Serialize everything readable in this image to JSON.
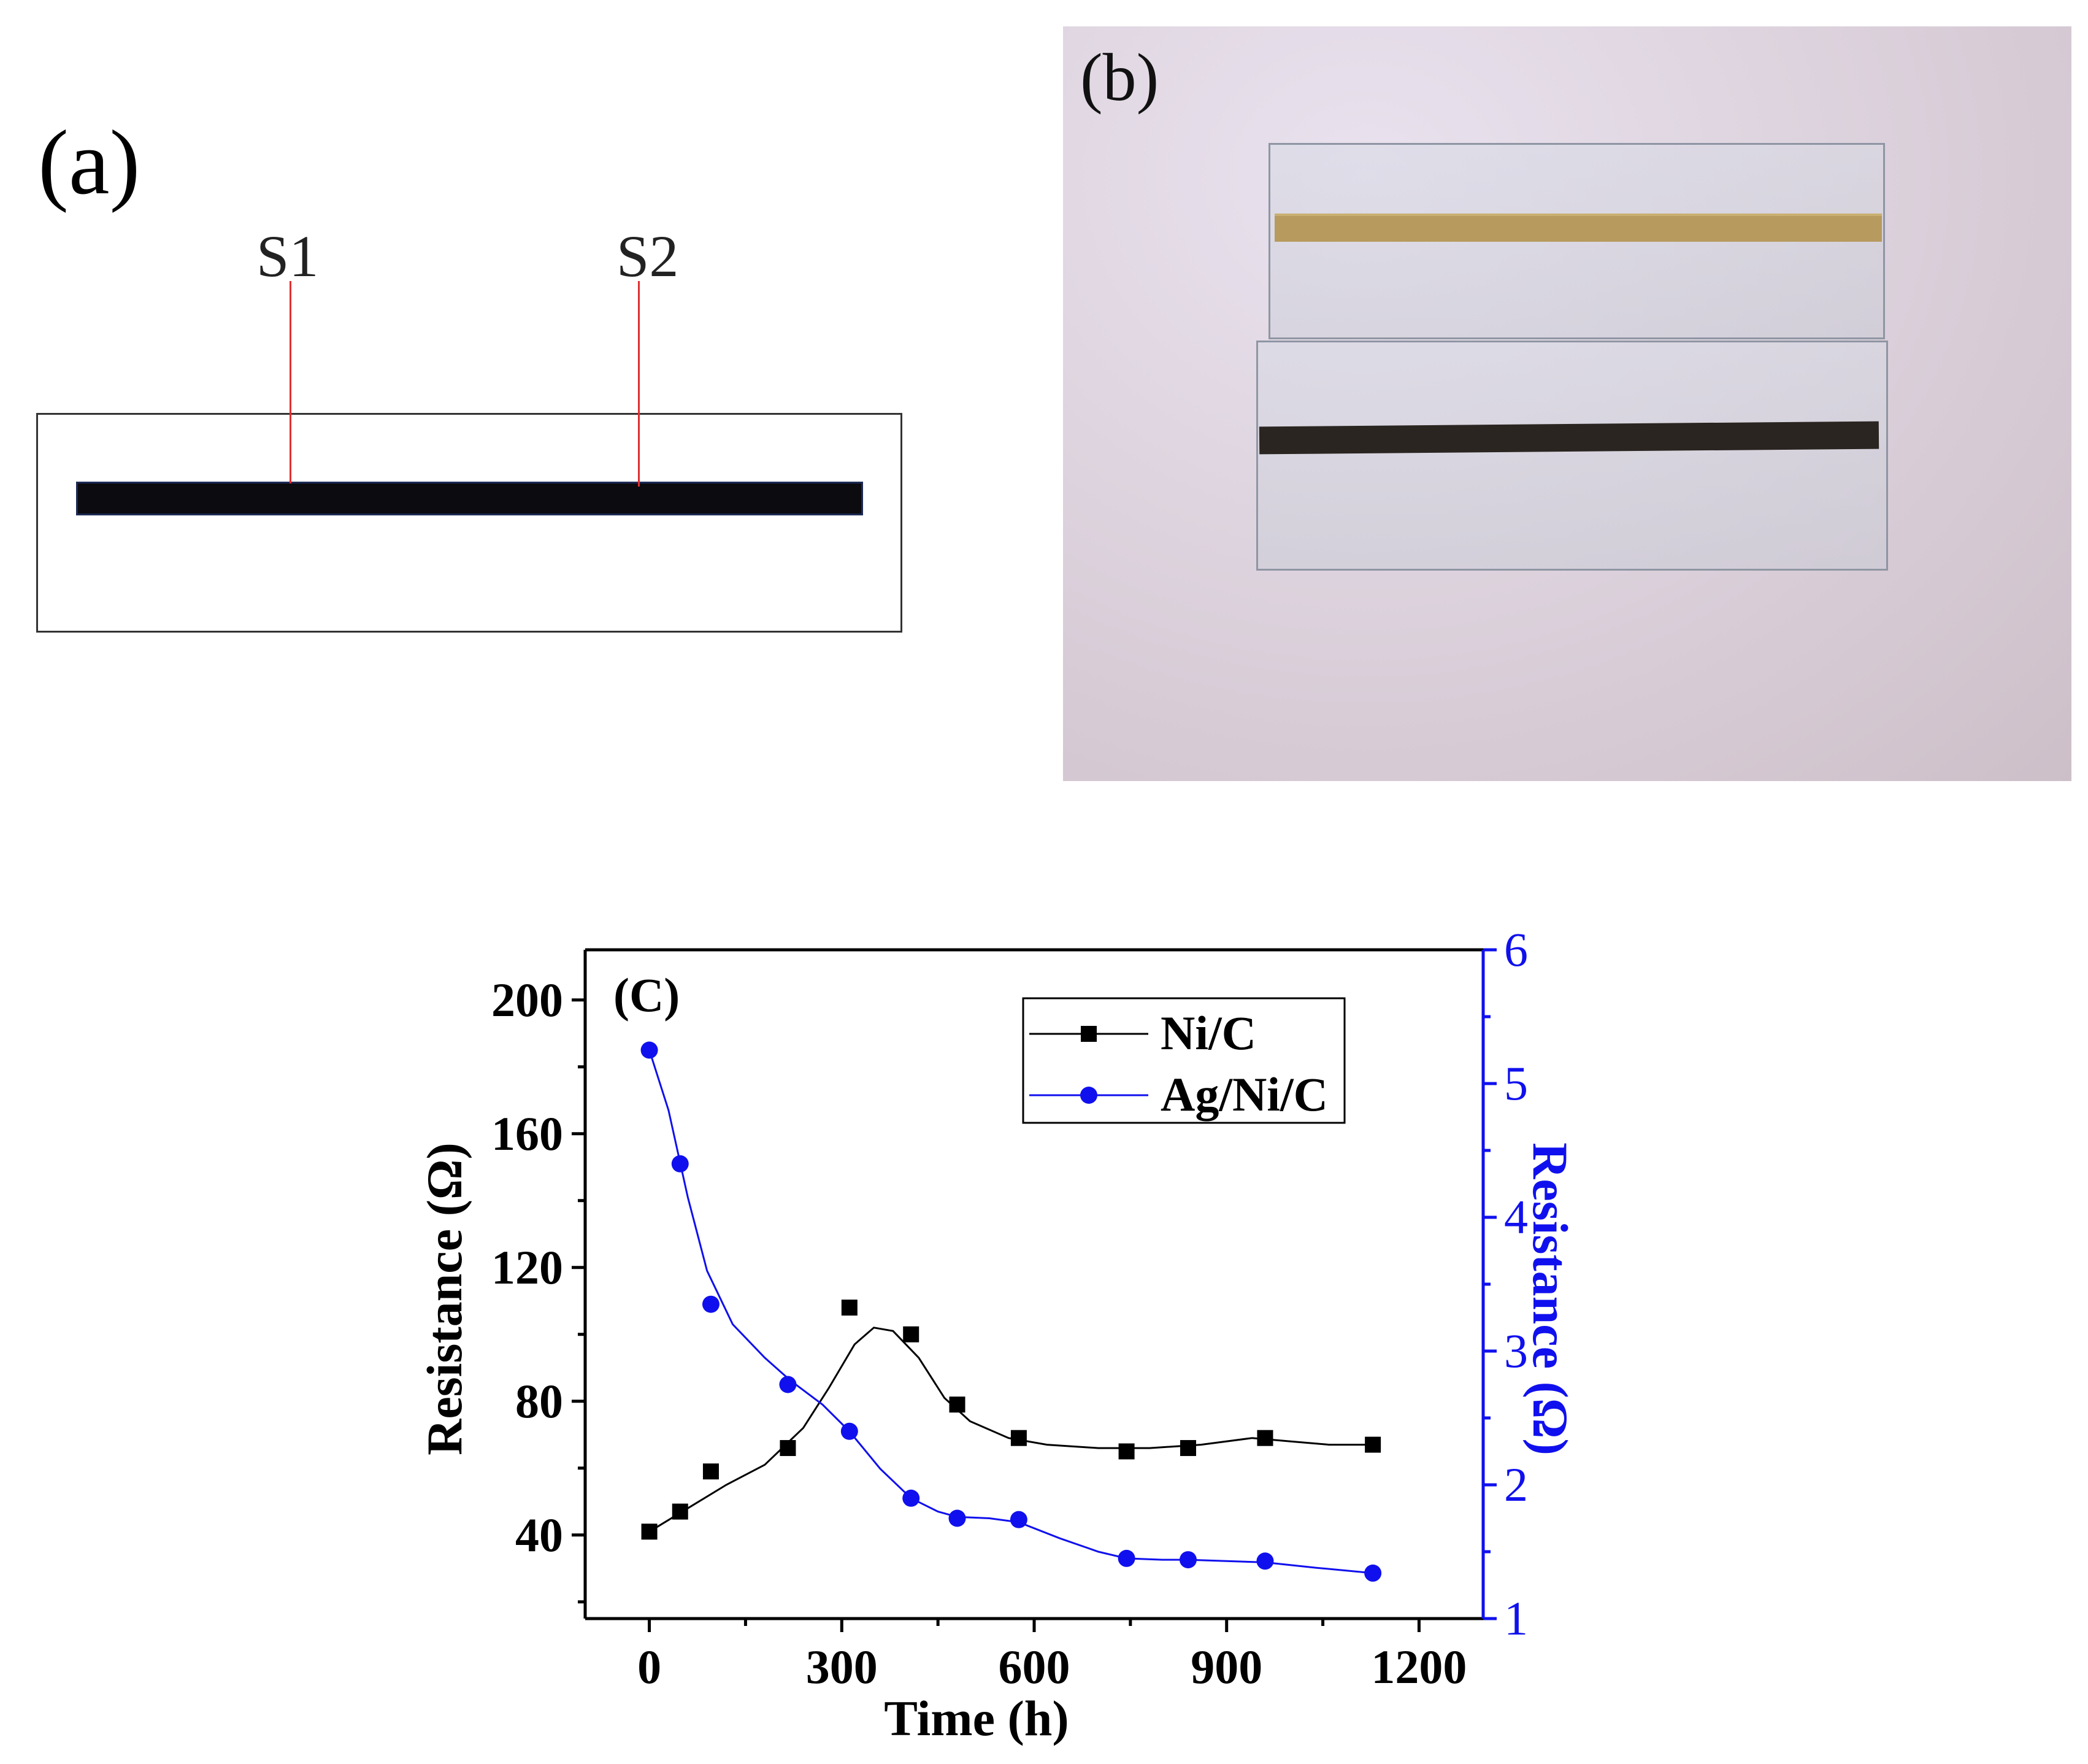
{
  "panel_a": {
    "label": "(a)",
    "probes": [
      "S1",
      "S2"
    ]
  },
  "panel_b": {
    "label": "(b)"
  },
  "chart_data": {
    "type": "scatter",
    "panel_label": "(C)",
    "xlabel": "Time (h)",
    "ylabel_left": "Resistance (Ω)",
    "ylabel_right": "Resistance (Ω)",
    "xlim": [
      -100,
      1300
    ],
    "ylim_left": [
      15,
      215
    ],
    "ylim_right": [
      1,
      6
    ],
    "x_ticks": [
      0,
      300,
      600,
      900,
      1200
    ],
    "y_ticks_left": [
      40,
      80,
      120,
      160,
      200
    ],
    "y_ticks_right": [
      1,
      2,
      3,
      4,
      5,
      6
    ],
    "legend_position": "top-right",
    "grid": false,
    "series": [
      {
        "name": "Ni/C",
        "axis": "left",
        "marker": "square",
        "color": "#000000",
        "x": [
          0,
          48,
          96,
          216,
          312,
          408,
          480,
          576,
          744,
          840,
          960,
          1128
        ],
        "y": [
          41,
          47,
          59,
          66,
          108,
          100,
          79,
          69,
          65,
          66,
          69,
          67
        ],
        "smoothed_curve": {
          "x": [
            0,
            60,
            120,
            180,
            240,
            280,
            320,
            350,
            380,
            420,
            460,
            500,
            560,
            620,
            700,
            780,
            860,
            940,
            1000,
            1060,
            1128
          ],
          "y": [
            41,
            48,
            55,
            61,
            72,
            84,
            97,
            102,
            101,
            93,
            81,
            74,
            69,
            67,
            66,
            66,
            67,
            69,
            68,
            67,
            67
          ]
        }
      },
      {
        "name": "Ag/Ni/C",
        "axis": "right",
        "marker": "circle",
        "color": "#1010ee",
        "x": [
          0,
          48,
          96,
          216,
          312,
          408,
          480,
          576,
          744,
          840,
          960,
          1128
        ],
        "y": [
          5.25,
          4.4,
          3.35,
          2.75,
          2.4,
          1.9,
          1.75,
          1.74,
          1.45,
          1.44,
          1.43,
          1.34
        ],
        "smoothed_curve": {
          "x": [
            0,
            30,
            60,
            90,
            130,
            180,
            220,
            270,
            312,
            360,
            408,
            450,
            480,
            530,
            576,
            640,
            700,
            744,
            800,
            840,
            900,
            960,
            1040,
            1128
          ],
          "y": [
            5.25,
            4.8,
            4.15,
            3.6,
            3.2,
            2.95,
            2.78,
            2.6,
            2.4,
            2.12,
            1.9,
            1.8,
            1.76,
            1.75,
            1.72,
            1.6,
            1.5,
            1.45,
            1.44,
            1.44,
            1.43,
            1.42,
            1.38,
            1.34
          ]
        }
      }
    ]
  }
}
